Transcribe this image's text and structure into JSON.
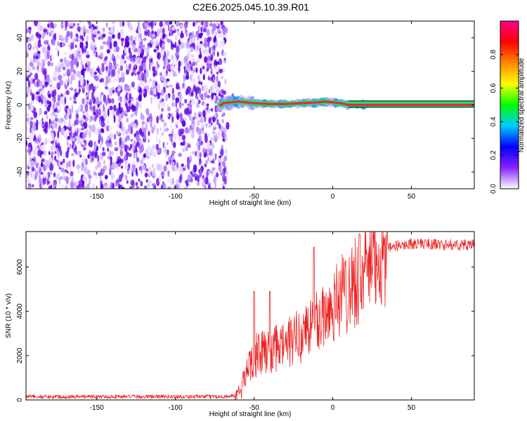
{
  "figure_title": "C2E6.2025.045.10.39.R01",
  "colors": {
    "snr_line": "#ee2222",
    "spectrum_speckle": "#7711ee",
    "spectrum_dark": "#5500dd",
    "ridge_core": "#ee2244",
    "ridge_halo": "#22dd66",
    "ridge_outer": "#1188ff"
  },
  "chart_data": [
    {
      "type": "heatmap",
      "xlabel": "Height of straight line (km)",
      "ylabel": "Frequency (Hz)",
      "xlim": [
        -195,
        90
      ],
      "ylim": [
        -50,
        50
      ],
      "x_ticks": [
        -150,
        -100,
        -50,
        0,
        50
      ],
      "y_ticks": [
        -40,
        -20,
        0,
        20,
        40
      ],
      "grid": false,
      "colorbar": {
        "label": "Normalized spectral amplitude",
        "range": [
          0,
          1
        ],
        "ticks": [
          0.0,
          0.2,
          0.4,
          0.6,
          0.8
        ],
        "colormap": [
          "#ffffff",
          "#8822ff",
          "#0000ff",
          "#00ccff",
          "#00ff00",
          "#ffff00",
          "#ff8800",
          "#ff0000",
          "#ff0088"
        ]
      },
      "ridge": {
        "frequency_hz": 0.5,
        "x_start": -72,
        "x_end": 90,
        "points": [
          [
            -70,
            1
          ],
          [
            -60,
            2
          ],
          [
            -50,
            1
          ],
          [
            -40,
            0.5
          ],
          [
            -30,
            0.5
          ],
          [
            -20,
            1
          ],
          [
            -10,
            1.5
          ],
          [
            -5,
            2
          ],
          [
            0,
            1.5
          ],
          [
            5,
            1
          ],
          [
            10,
            0
          ],
          [
            20,
            0
          ],
          [
            50,
            0
          ],
          [
            90,
            0
          ]
        ]
      },
      "noise_region": {
        "x_start": -195,
        "x_end": -68,
        "amplitude": 0.1
      }
    },
    {
      "type": "line",
      "xlabel": "Height of straight line (km)",
      "ylabel": "SNR (10 * v/v)",
      "xlim": [
        -195,
        90
      ],
      "ylim": [
        0,
        7600
      ],
      "x_ticks": [
        -150,
        -100,
        -50,
        0,
        50
      ],
      "y_ticks": [
        0,
        2000,
        4000,
        6000
      ],
      "grid": false,
      "series": [
        {
          "x": [
            -195,
            -150,
            -100,
            -70,
            -62,
            -58,
            -55,
            -52,
            -50,
            -45,
            -40,
            -35,
            -30,
            -25,
            -20,
            -15,
            -10,
            -5,
            0,
            5,
            10,
            15,
            20,
            25,
            30,
            35,
            40,
            50,
            60,
            70,
            80,
            90
          ],
          "y": [
            150,
            150,
            150,
            150,
            200,
            500,
            1200,
            1800,
            2000,
            2100,
            2200,
            2300,
            2500,
            2700,
            3000,
            3300,
            3600,
            3900,
            4300,
            4700,
            5100,
            5500,
            5900,
            6300,
            6600,
            6800,
            6950,
            7050,
            7050,
            7000,
            7000,
            7000
          ]
        }
      ],
      "spikes": [
        [
          -50,
          4900
        ],
        [
          -40,
          4900
        ],
        [
          -12,
          6900
        ],
        [
          17,
          7500
        ]
      ]
    }
  ]
}
